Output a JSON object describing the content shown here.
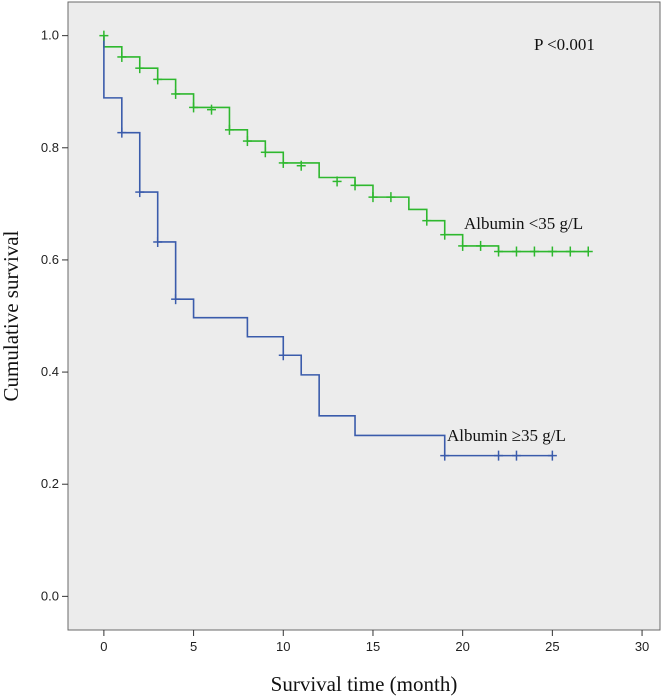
{
  "chart_data": {
    "type": "line",
    "subtype": "kaplan-meier",
    "title": "",
    "xlabel": "Survival time (month)",
    "ylabel": "Cumulative survival",
    "xlim": [
      -2,
      31
    ],
    "ylim": [
      -0.06,
      1.06
    ],
    "xticks": [
      0,
      5,
      10,
      15,
      20,
      25,
      30
    ],
    "yticks": [
      0.0,
      0.2,
      0.4,
      0.6,
      0.8,
      1.0
    ],
    "xtick_labels": [
      "0",
      "5",
      "10",
      "15",
      "20",
      "25",
      "30"
    ],
    "ytick_labels": [
      "0.0",
      "0.2",
      "0.4",
      "0.6",
      "0.8",
      "1.0"
    ],
    "grid": false,
    "background": "#ececec",
    "annotations": [
      {
        "name": "p-value",
        "text": "P <0.001"
      }
    ],
    "series": [
      {
        "name": "Albumin <35 g/L",
        "color": "#2eb82e",
        "steps": [
          [
            0,
            0.98
          ],
          [
            1,
            0.962
          ],
          [
            2,
            0.942
          ],
          [
            3,
            0.922
          ],
          [
            4,
            0.896
          ],
          [
            5,
            0.872
          ],
          [
            7,
            0.832
          ],
          [
            8,
            0.812
          ],
          [
            9,
            0.792
          ],
          [
            10,
            0.773
          ],
          [
            12,
            0.747
          ],
          [
            14,
            0.733
          ],
          [
            15,
            0.712
          ],
          [
            17,
            0.69
          ],
          [
            18,
            0.67
          ],
          [
            19,
            0.645
          ],
          [
            20,
            0.625
          ],
          [
            22,
            0.615
          ],
          [
            27,
            0.615
          ]
        ],
        "censored": [
          [
            0,
            1.0
          ],
          [
            1,
            0.962
          ],
          [
            2,
            0.942
          ],
          [
            3,
            0.922
          ],
          [
            4,
            0.896
          ],
          [
            5,
            0.872
          ],
          [
            6,
            0.868
          ],
          [
            7,
            0.832
          ],
          [
            8,
            0.812
          ],
          [
            9,
            0.792
          ],
          [
            10,
            0.773
          ],
          [
            11,
            0.768
          ],
          [
            13,
            0.74
          ],
          [
            14,
            0.733
          ],
          [
            15,
            0.712
          ],
          [
            16,
            0.712
          ],
          [
            18,
            0.67
          ],
          [
            19,
            0.645
          ],
          [
            20,
            0.625
          ],
          [
            21,
            0.625
          ],
          [
            22,
            0.615
          ],
          [
            23,
            0.615
          ],
          [
            24,
            0.615
          ],
          [
            25,
            0.615
          ],
          [
            26,
            0.615
          ],
          [
            27,
            0.615
          ]
        ]
      },
      {
        "name": "Albumin ≥35 g/L",
        "color": "#3a5bab",
        "steps": [
          [
            0,
            1.0
          ],
          [
            0,
            0.889
          ],
          [
            1,
            0.827
          ],
          [
            2,
            0.721
          ],
          [
            3,
            0.632
          ],
          [
            4,
            0.53
          ],
          [
            5,
            0.497
          ],
          [
            8,
            0.463
          ],
          [
            10,
            0.43
          ],
          [
            11,
            0.395
          ],
          [
            12,
            0.322
          ],
          [
            14,
            0.287
          ],
          [
            19,
            0.251
          ],
          [
            25,
            0.251
          ]
        ],
        "censored": [
          [
            1,
            0.827
          ],
          [
            2,
            0.721
          ],
          [
            3,
            0.632
          ],
          [
            4,
            0.53
          ],
          [
            10,
            0.43
          ],
          [
            19,
            0.251
          ],
          [
            22,
            0.251
          ],
          [
            23,
            0.251
          ],
          [
            25,
            0.251
          ]
        ]
      }
    ]
  }
}
